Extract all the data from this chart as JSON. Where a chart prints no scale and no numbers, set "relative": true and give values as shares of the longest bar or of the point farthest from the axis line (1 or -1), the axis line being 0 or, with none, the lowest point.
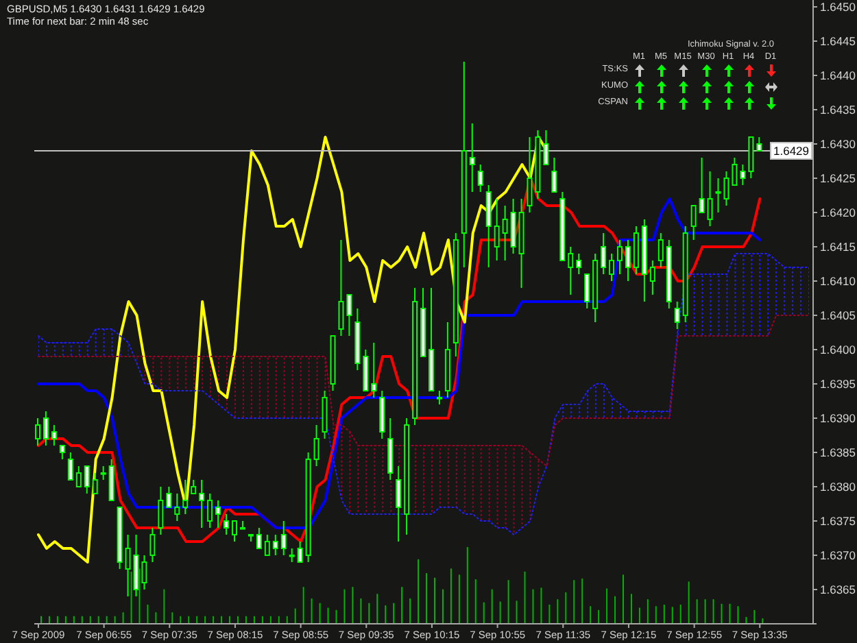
{
  "chart_data": [
    {
      "type": "candlestick",
      "title": "GBPUSD,M5 1.6430 1.6431 1.6429 1.6429",
      "subtitle": "Time for next bar: 2 min 48 sec",
      "categories": [
        "7 Sep 2009",
        null,
        null,
        null,
        null,
        null,
        null,
        null,
        "7 Sep 06:55",
        null,
        null,
        null,
        null,
        null,
        null,
        null,
        "7 Sep 07:35",
        null,
        null,
        null,
        null,
        null,
        null,
        null,
        "7 Sep 08:15",
        null,
        null,
        null,
        null,
        null,
        null,
        null,
        "7 Sep 08:55",
        null,
        null,
        null,
        null,
        null,
        null,
        null,
        "7 Sep 09:35",
        null,
        null,
        null,
        null,
        null,
        null,
        null,
        "7 Sep 10:15",
        null,
        null,
        null,
        null,
        null,
        null,
        null,
        "7 Sep 10:55",
        null,
        null,
        null,
        null,
        null,
        null,
        null,
        "7 Sep 11:35",
        null,
        null,
        null,
        null,
        null,
        null,
        null,
        "7 Sep 12:15",
        null,
        null,
        null,
        null,
        null,
        null,
        null,
        "7 Sep 12:55",
        null,
        null,
        null,
        null,
        null,
        null,
        null,
        "7 Sep 13:35",
        null,
        null,
        null,
        null,
        null,
        null
      ],
      "color": "#00ff00",
      "ohlc": [
        [
          1.6387,
          1.639,
          1.6386,
          1.6389
        ],
        [
          1.639,
          1.6391,
          1.6386,
          1.6387
        ],
        [
          1.6388,
          1.6389,
          1.6386,
          1.6387
        ],
        [
          1.6386,
          1.6386,
          1.6384,
          1.6385
        ],
        [
          1.6384,
          1.6385,
          1.6381,
          1.6381
        ],
        [
          1.638,
          1.6383,
          1.638,
          1.6382
        ],
        [
          1.6383,
          1.6383,
          1.6379,
          1.638
        ],
        [
          1.6379,
          1.6382,
          1.6379,
          1.6381
        ],
        [
          1.6382,
          1.6383,
          1.6381,
          1.6382
        ],
        [
          1.6383,
          1.6384,
          1.6378,
          1.6378
        ],
        [
          1.6377,
          1.6377,
          1.6368,
          1.6369
        ],
        [
          1.6368,
          1.6373,
          1.6364,
          1.6371
        ],
        [
          1.637,
          1.6373,
          1.6364,
          1.6365
        ],
        [
          1.6366,
          1.637,
          1.6365,
          1.6369
        ],
        [
          1.637,
          1.6374,
          1.6369,
          1.6373
        ],
        [
          1.6374,
          1.638,
          1.6373,
          1.6378
        ],
        [
          1.6379,
          1.638,
          1.6377,
          1.6377
        ],
        [
          1.6376,
          1.6379,
          1.6375,
          1.6377
        ],
        [
          1.6377,
          1.6381,
          1.6376,
          1.6378
        ],
        [
          1.6379,
          1.6381,
          1.6379,
          1.638
        ],
        [
          1.6379,
          1.6381,
          1.6374,
          1.6378
        ],
        [
          1.6375,
          1.6379,
          1.6374,
          1.6378
        ],
        [
          1.6377,
          1.6378,
          1.6374,
          1.6376
        ],
        [
          1.6375,
          1.6376,
          1.6373,
          1.6374
        ],
        [
          1.6373,
          1.6375,
          1.6372,
          1.6375
        ],
        [
          1.6374,
          1.6375,
          1.6374,
          1.6374
        ],
        [
          1.6373,
          1.6373,
          1.6372,
          1.6373
        ],
        [
          1.6373,
          1.6374,
          1.6371,
          1.6371
        ],
        [
          1.637,
          1.6373,
          1.637,
          1.6372
        ],
        [
          1.6372,
          1.6373,
          1.637,
          1.6371
        ],
        [
          1.6373,
          1.6375,
          1.637,
          1.6371
        ],
        [
          1.637,
          1.6371,
          1.6369,
          1.637
        ],
        [
          1.6371,
          1.6372,
          1.6369,
          1.6369
        ],
        [
          1.637,
          1.6385,
          1.6369,
          1.6384
        ],
        [
          1.6384,
          1.6389,
          1.6383,
          1.6387
        ],
        [
          1.6388,
          1.6394,
          1.6387,
          1.6393
        ],
        [
          1.6395,
          1.6402,
          1.6394,
          1.6402
        ],
        [
          1.6403,
          1.6416,
          1.6402,
          1.6407
        ],
        [
          1.6408,
          1.6408,
          1.6402,
          1.6405
        ],
        [
          1.6404,
          1.6406,
          1.6397,
          1.6398
        ],
        [
          1.6399,
          1.64,
          1.6394,
          1.6394
        ],
        [
          1.6395,
          1.6401,
          1.6393,
          1.6394
        ],
        [
          1.6393,
          1.6394,
          1.6387,
          1.6388
        ],
        [
          1.6387,
          1.639,
          1.6381,
          1.6382
        ],
        [
          1.6381,
          1.6383,
          1.6372,
          1.6377
        ],
        [
          1.6376,
          1.639,
          1.6373,
          1.6389
        ],
        [
          1.639,
          1.6409,
          1.6389,
          1.6407
        ],
        [
          1.6406,
          1.6409,
          1.6399,
          1.6399
        ],
        [
          1.64,
          1.6409,
          1.6394,
          1.6394
        ],
        [
          1.6393,
          1.6394,
          1.6392,
          1.6393
        ],
        [
          1.6394,
          1.6404,
          1.6393,
          1.64
        ],
        [
          1.6401,
          1.6417,
          1.6399,
          1.6416
        ],
        [
          1.6417,
          1.6442,
          1.6412,
          1.6429
        ],
        [
          1.6428,
          1.6433,
          1.6423,
          1.6427
        ],
        [
          1.6426,
          1.6427,
          1.6423,
          1.6424
        ],
        [
          1.6423,
          1.6424,
          1.6412,
          1.6418
        ],
        [
          1.6415,
          1.6422,
          1.6413,
          1.6418
        ],
        [
          1.6417,
          1.6421,
          1.6413,
          1.6419
        ],
        [
          1.642,
          1.6422,
          1.6414,
          1.6415
        ],
        [
          1.6414,
          1.6422,
          1.6409,
          1.642
        ],
        [
          1.6421,
          1.6431,
          1.642,
          1.6425
        ],
        [
          1.6423,
          1.6432,
          1.6422,
          1.6431
        ],
        [
          1.643,
          1.6432,
          1.6427,
          1.6427
        ],
        [
          1.6426,
          1.6428,
          1.6423,
          1.6423
        ],
        [
          1.6422,
          1.6423,
          1.6413,
          1.6413
        ],
        [
          1.6412,
          1.6415,
          1.6408,
          1.6414
        ],
        [
          1.6413,
          1.6414,
          1.6411,
          1.6412
        ],
        [
          1.6411,
          1.6411,
          1.6406,
          1.6407
        ],
        [
          1.6406,
          1.6414,
          1.6404,
          1.6413
        ],
        [
          1.6415,
          1.6417,
          1.6411,
          1.6412
        ],
        [
          1.6411,
          1.6414,
          1.641,
          1.6413
        ],
        [
          1.6413,
          1.6416,
          1.6411,
          1.6415
        ],
        [
          1.6415,
          1.6416,
          1.641,
          1.6412
        ],
        [
          1.6412,
          1.6418,
          1.6411,
          1.6417
        ],
        [
          1.6418,
          1.6419,
          1.6407,
          1.6411
        ],
        [
          1.641,
          1.6413,
          1.6408,
          1.6412
        ],
        [
          1.6413,
          1.6417,
          1.6412,
          1.6416
        ],
        [
          1.6415,
          1.6416,
          1.6406,
          1.6407
        ],
        [
          1.6406,
          1.6407,
          1.6403,
          1.6404
        ],
        [
          1.6405,
          1.6418,
          1.6404,
          1.6417
        ],
        [
          1.6418,
          1.6421,
          1.6416,
          1.6421
        ],
        [
          1.6422,
          1.6428,
          1.642,
          1.642
        ],
        [
          1.6419,
          1.6426,
          1.6418,
          1.6422
        ],
        [
          1.6423,
          1.6425,
          1.642,
          1.6423
        ],
        [
          1.6422,
          1.6426,
          1.6421,
          1.6425
        ],
        [
          1.6424,
          1.6428,
          1.6424,
          1.6427
        ],
        [
          1.6426,
          1.6427,
          1.6424,
          1.6425
        ],
        [
          1.6426,
          1.6431,
          1.6425,
          1.6431
        ],
        [
          1.643,
          1.6431,
          1.6429,
          1.6429
        ],
        null,
        null,
        null,
        null,
        null,
        null
      ],
      "series": [
        {
          "type": "line",
          "color": "#ff0000",
          "values": [
            1.6386,
            1.6387,
            1.6387,
            1.6387,
            1.6386,
            1.6386,
            1.6385,
            1.6385,
            1.6385,
            1.6385,
            1.6378,
            1.6376,
            1.6374,
            1.6374,
            1.6374,
            1.6374,
            1.6374,
            1.6374,
            1.6372,
            1.6372,
            1.6372,
            1.6373,
            1.6374,
            1.6377,
            1.6376,
            1.6376,
            1.6376,
            1.6376,
            1.6375,
            1.6374,
            1.6374,
            1.6373,
            1.6372,
            1.6375,
            1.638,
            1.6381,
            1.6386,
            1.6392,
            1.6393,
            1.6393,
            1.6393,
            1.6394,
            1.6399,
            1.6399,
            1.6395,
            1.6394,
            1.639,
            1.639,
            1.639,
            1.639,
            1.639,
            1.6396,
            1.6407,
            1.6408,
            1.6416,
            1.6416,
            1.6416,
            1.6416,
            1.6416,
            1.642,
            1.6425,
            1.6422,
            1.6421,
            1.6421,
            1.6421,
            1.642,
            1.6418,
            1.6418,
            1.6418,
            1.6418,
            1.6417,
            1.6415,
            1.6413,
            1.6411,
            1.6411,
            1.6412,
            1.6412,
            1.6412,
            1.641,
            1.641,
            1.6412,
            1.6415,
            1.6415,
            1.6415,
            1.6415,
            1.6415,
            1.6415,
            1.6417,
            1.6422,
            null,
            null,
            null,
            null,
            null,
            null
          ]
        },
        {
          "type": "line",
          "color": "#0000ff",
          "values": [
            1.6395,
            1.6395,
            1.6395,
            1.6395,
            1.6395,
            1.6395,
            1.6394,
            1.6394,
            1.6393,
            1.639,
            1.6384,
            1.6379,
            1.6377,
            1.6377,
            1.6377,
            1.6377,
            1.6377,
            1.6377,
            1.6377,
            1.6377,
            1.6377,
            1.6377,
            1.6377,
            1.6377,
            1.6377,
            1.6377,
            1.6377,
            1.6376,
            1.6375,
            1.6374,
            1.6374,
            1.6374,
            1.6374,
            1.6374,
            1.6376,
            1.6378,
            1.6384,
            1.639,
            1.6391,
            1.6392,
            1.6393,
            1.6393,
            1.6393,
            1.6393,
            1.6393,
            1.6393,
            1.6393,
            1.6393,
            1.6393,
            1.6393,
            1.6393,
            1.6394,
            1.6405,
            1.6405,
            1.6405,
            1.6405,
            1.6405,
            1.6405,
            1.6405,
            1.6407,
            1.6407,
            1.6407,
            1.6407,
            1.6407,
            1.6407,
            1.6407,
            1.6407,
            1.6407,
            1.6407,
            1.6407,
            1.6408,
            1.6416,
            1.6416,
            1.6416,
            1.6416,
            1.6416,
            1.642,
            1.6422,
            1.6419,
            1.6417,
            1.6417,
            1.6417,
            1.6417,
            1.6417,
            1.6417,
            1.6417,
            1.6417,
            1.6417,
            1.6416,
            null,
            null,
            null,
            null,
            null,
            null
          ]
        },
        {
          "type": "line",
          "color": "#ffff00",
          "values": [
            1.6373,
            1.6371,
            1.6372,
            1.6371,
            1.6371,
            1.637,
            1.6369,
            1.6384,
            1.6387,
            1.6393,
            1.6402,
            1.6407,
            1.6405,
            1.6398,
            1.6394,
            1.6394,
            1.6388,
            1.6382,
            1.6377,
            1.6389,
            1.6407,
            1.6399,
            1.6394,
            1.6393,
            1.64,
            1.6416,
            1.6429,
            1.6427,
            1.6424,
            1.6418,
            1.6418,
            1.6419,
            1.6415,
            1.642,
            1.6425,
            1.6431,
            1.6427,
            1.6423,
            1.6413,
            1.6414,
            1.6412,
            1.6407,
            1.6413,
            1.6412,
            1.6413,
            1.6415,
            1.6412,
            1.6417,
            1.6411,
            1.6412,
            1.6416,
            1.6407,
            1.6404,
            1.6417,
            1.6421,
            1.642,
            1.6422,
            1.6423,
            1.6425,
            1.6427,
            1.6425,
            1.6431,
            1.6429,
            null,
            null,
            null,
            null,
            null,
            null,
            null,
            null,
            null,
            null,
            null,
            null,
            null,
            null,
            null,
            null,
            null,
            null,
            null,
            null,
            null,
            null,
            null,
            null,
            null,
            null,
            null,
            null,
            null,
            null,
            null,
            null
          ]
        },
        {
          "type": "line",
          "color": "#2020ff",
          "line_style": "dotted",
          "values": [
            1.6402,
            1.6401,
            1.6401,
            1.6401,
            1.6401,
            1.6401,
            1.6401,
            1.6403,
            1.6403,
            1.6403,
            1.6402,
            1.6401,
            1.6398,
            1.6395,
            1.6395,
            1.6394,
            1.6394,
            1.6394,
            1.6394,
            1.6394,
            1.6394,
            1.6393,
            1.6392,
            1.6391,
            1.639,
            1.639,
            1.639,
            1.639,
            1.639,
            1.639,
            1.639,
            1.639,
            1.639,
            1.639,
            1.639,
            1.639,
            1.6384,
            1.6378,
            1.6376,
            1.6376,
            1.6376,
            1.6376,
            1.6376,
            1.6376,
            1.6376,
            1.6376,
            1.6376,
            1.6376,
            1.6376,
            1.6377,
            1.6377,
            1.6377,
            1.6376,
            1.6376,
            1.6375,
            1.6375,
            1.6374,
            1.6374,
            1.6373,
            1.6374,
            1.6375,
            1.638,
            1.6383,
            1.639,
            1.6392,
            1.6392,
            1.6392,
            1.6394,
            1.6395,
            1.6395,
            1.6393,
            1.6392,
            1.6391,
            1.6391,
            1.6391,
            1.6391,
            1.6391,
            1.6391,
            1.6403,
            1.6411,
            1.6411,
            1.6411,
            1.6411,
            1.6411,
            1.6411,
            1.6414,
            1.6414,
            1.6414,
            1.6414,
            1.6414,
            1.6413,
            1.6412,
            1.6412,
            1.6412,
            1.6412
          ],
          "upper": [
            1.6402,
            1.6401,
            1.6401,
            1.6401,
            1.6401,
            1.6401,
            1.6401,
            1.6403,
            1.6403,
            1.6403,
            1.6402,
            1.6401,
            null,
            null,
            null,
            null,
            null,
            null,
            null,
            null,
            null,
            null,
            null,
            null,
            null,
            null,
            null,
            null,
            null,
            null,
            null,
            null,
            null,
            null,
            null,
            null,
            null,
            null,
            null,
            null,
            null,
            null,
            null,
            null,
            null,
            null,
            null,
            null,
            null,
            null,
            null,
            null,
            null,
            null,
            null,
            null,
            null,
            null,
            null,
            null,
            null,
            null,
            1.6383,
            1.639,
            1.6392,
            1.6392,
            1.6392,
            1.6394,
            1.6395,
            1.6395,
            1.6393,
            1.6392,
            1.6391,
            1.6391,
            1.6391,
            1.6391,
            1.6391,
            1.6391,
            1.6403,
            1.6411,
            1.6411,
            1.6411,
            1.6411,
            1.6411,
            1.6411,
            1.6414,
            1.6414,
            1.6414,
            1.6414,
            1.6414,
            1.6413,
            1.6412,
            1.6412,
            1.6412,
            1.6412
          ],
          "lower": [
            1.6399,
            1.6399,
            1.6399,
            1.6399,
            1.6399,
            1.6399,
            1.6399,
            1.6399,
            1.6399,
            1.6399,
            1.6399,
            1.6399,
            null,
            null,
            null,
            null,
            null,
            null,
            null,
            null,
            null,
            null,
            null,
            null,
            null,
            null,
            null,
            null,
            null,
            null,
            null,
            null,
            null,
            null,
            null,
            null,
            null,
            null,
            null,
            null,
            null,
            null,
            null,
            null,
            null,
            null,
            null,
            null,
            null,
            null,
            null,
            null,
            null,
            null,
            null,
            null,
            null,
            null,
            null,
            null,
            null,
            null,
            1.6383,
            1.6389,
            1.639,
            1.639,
            1.639,
            1.639,
            1.639,
            1.639,
            1.639,
            1.639,
            1.639,
            1.639,
            1.639,
            1.639,
            1.639,
            1.639,
            1.6402,
            1.6402,
            1.6402,
            1.6402,
            1.6402,
            1.6402,
            1.6402,
            1.6402,
            1.6402,
            1.6402,
            1.6402,
            1.6402,
            1.6405,
            1.6405,
            1.6405,
            1.6405,
            1.6405
          ]
        },
        {
          "type": "line",
          "color": "#a00028",
          "line_style": "dotted",
          "values": [
            1.6399,
            1.6399,
            1.6399,
            1.6399,
            1.6399,
            1.6399,
            1.6399,
            1.6399,
            1.6399,
            1.6399,
            1.6399,
            1.6399,
            1.6399,
            1.6399,
            1.6399,
            1.6399,
            1.6399,
            1.6399,
            1.6399,
            1.6399,
            1.6399,
            1.6399,
            1.6399,
            1.6399,
            1.6399,
            1.6399,
            1.6399,
            1.6399,
            1.6399,
            1.6399,
            1.6399,
            1.6399,
            1.6399,
            1.6399,
            1.6399,
            1.6399,
            1.6389,
            1.6389,
            1.6388,
            1.6386,
            1.6386,
            1.6386,
            1.6386,
            1.6386,
            1.6386,
            1.6386,
            1.6386,
            1.6386,
            1.6386,
            1.6386,
            1.6386,
            1.6386,
            1.6386,
            1.6386,
            1.6386,
            1.6386,
            1.6386,
            1.6386,
            1.6386,
            1.6386,
            1.6385,
            1.6384,
            1.6383,
            1.6389,
            1.639,
            1.639,
            1.639,
            1.639,
            1.639,
            1.639,
            1.639,
            1.639,
            1.639,
            1.639,
            1.639,
            1.639,
            1.639,
            1.639,
            1.6402,
            1.6402,
            1.6402,
            1.6402,
            1.6402,
            1.6402,
            1.6402,
            1.6402,
            1.6402,
            1.6402,
            1.6402,
            1.6402,
            1.6405,
            1.6405,
            1.6405,
            1.6405,
            1.6405
          ],
          "upper": [
            null,
            null,
            null,
            null,
            null,
            null,
            null,
            null,
            null,
            null,
            null,
            null,
            1.6399,
            1.6399,
            1.6399,
            1.6399,
            1.6399,
            1.6399,
            1.6399,
            1.6399,
            1.6399,
            1.6399,
            1.6399,
            1.6399,
            1.6399,
            1.6399,
            1.6399,
            1.6399,
            1.6399,
            1.6399,
            1.6399,
            1.6399,
            1.6399,
            1.6399,
            1.6399,
            1.6399,
            1.6389,
            1.6389,
            1.6388,
            1.6386,
            1.6386,
            1.6386,
            1.6386,
            1.6386,
            1.6386,
            1.6386,
            1.6386,
            1.6386,
            1.6386,
            1.6386,
            1.6386,
            1.6386,
            1.6386,
            1.6386,
            1.6386,
            1.6386,
            1.6386,
            1.6386,
            1.6386,
            1.6386,
            1.6385,
            1.6384,
            1.6383,
            null,
            null,
            null,
            null,
            null,
            null,
            null,
            null,
            null,
            null,
            null,
            null,
            null,
            null,
            null,
            null,
            null,
            null,
            null,
            null,
            null,
            null,
            null,
            null,
            null,
            null,
            null,
            null,
            null,
            null,
            null,
            null
          ],
          "lower": [
            null,
            null,
            null,
            null,
            null,
            null,
            null,
            null,
            null,
            null,
            null,
            null,
            1.6398,
            1.6395,
            1.6395,
            1.6394,
            1.6394,
            1.6394,
            1.6394,
            1.6394,
            1.6394,
            1.6393,
            1.6392,
            1.6391,
            1.639,
            1.639,
            1.639,
            1.639,
            1.639,
            1.639,
            1.639,
            1.639,
            1.639,
            1.639,
            1.639,
            1.639,
            1.6384,
            1.6378,
            1.6376,
            1.6376,
            1.6376,
            1.6376,
            1.6376,
            1.6376,
            1.6376,
            1.6376,
            1.6376,
            1.6376,
            1.6376,
            1.6377,
            1.6377,
            1.6377,
            1.6376,
            1.6376,
            1.6375,
            1.6375,
            1.6374,
            1.6374,
            1.6373,
            1.6374,
            1.6375,
            1.638,
            1.6383,
            null,
            null,
            null,
            null,
            null,
            null,
            null,
            null,
            null,
            null,
            null,
            null,
            null,
            null,
            null,
            null,
            null,
            null,
            null,
            null,
            null,
            null,
            null,
            null,
            null,
            null,
            null,
            null,
            null,
            null,
            null,
            null
          ]
        }
      ],
      "ylim": [
        1.636,
        1.6451
      ],
      "yticks": [
        1.6365,
        {
          "value": 1.637,
          "label": "1.6370"
        },
        1.6375,
        {
          "value": 1.638,
          "label": "1.6380"
        },
        1.6385,
        {
          "value": 1.639,
          "label": "1.6390"
        },
        1.6395,
        {
          "value": 1.64,
          "label": "1.6400"
        },
        1.6405,
        {
          "value": 1.641,
          "label": "1.6410"
        },
        1.6415,
        {
          "value": 1.642,
          "label": "1.6420"
        },
        1.6425,
        {
          "value": 1.643,
          "label": "1.6430"
        },
        1.6435,
        {
          "value": 1.644,
          "label": "1.6440"
        },
        1.6445,
        {
          "value": 1.645,
          "label": "1.6450"
        }
      ],
      "ref_lines": [
        {
          "axis": "y",
          "value": 1.6429,
          "label": "1.6429",
          "color": "#c0c0c0"
        }
      ],
      "annotations": [
        "Ichimoku Signal v. 2.0",
        "M1",
        "M5",
        "M15",
        "M30",
        "H1",
        "H4",
        "D1",
        "TS:KS",
        "KUMO",
        "CSPAN"
      ]
    },
    {
      "type": "bar",
      "relative": true,
      "tick_labels": false,
      "color": "#00b400",
      "categories": [
        null,
        null,
        null,
        null,
        null,
        null,
        null,
        null,
        null,
        null,
        null,
        null,
        null,
        null,
        null,
        null,
        null,
        null,
        null,
        null,
        null,
        null,
        null,
        null,
        null,
        null,
        null,
        null,
        null,
        null,
        null,
        null,
        null,
        null,
        null,
        null,
        null,
        null,
        null,
        null,
        null,
        null,
        null,
        null,
        null,
        null,
        null,
        null,
        null,
        null,
        null,
        null,
        null,
        null,
        null,
        null,
        null,
        null,
        null,
        null,
        null,
        null,
        null,
        null,
        null,
        null,
        null,
        null,
        null,
        null,
        null,
        null,
        null,
        null,
        null,
        null,
        null,
        null,
        null,
        null,
        null,
        null,
        null,
        null,
        null,
        null,
        null,
        null,
        null,
        null,
        null,
        null,
        null,
        null,
        null
      ],
      "values": [
        0.1,
        0.1,
        0.1,
        0.1,
        0.1,
        0.1,
        0.1,
        0.1,
        0.1,
        0.1,
        0.15,
        0.68,
        0.72,
        0.25,
        0.15,
        0.45,
        0.15,
        0.1,
        0.1,
        0.1,
        0.1,
        0.1,
        0.1,
        0.1,
        0.1,
        0.1,
        0.1,
        0.1,
        0.1,
        0.1,
        0.1,
        0.2,
        0.48,
        0.33,
        0.27,
        0.21,
        0.18,
        0.45,
        0.48,
        0.33,
        0.27,
        0.39,
        0.24,
        0.27,
        0.48,
        0.33,
        0.84,
        0.66,
        0.6,
        0.45,
        0.72,
        0.64,
        1,
        0.58,
        0.28,
        0.45,
        0.29,
        0.57,
        0.3,
        0.68,
        0.45,
        0.47,
        0.25,
        0.32,
        0.41,
        0.57,
        0.59,
        0.23,
        0.18,
        0.46,
        0.36,
        0.64,
        0.39,
        0.21,
        0.32,
        0.23,
        0.25,
        0.22,
        0.25,
        0.55,
        0.32,
        0.32,
        0.32,
        0.26,
        0.26,
        0.23,
        0.09,
        0.18,
        0.07,
        null,
        null,
        null,
        null,
        null,
        null
      ]
    }
  ]
}
